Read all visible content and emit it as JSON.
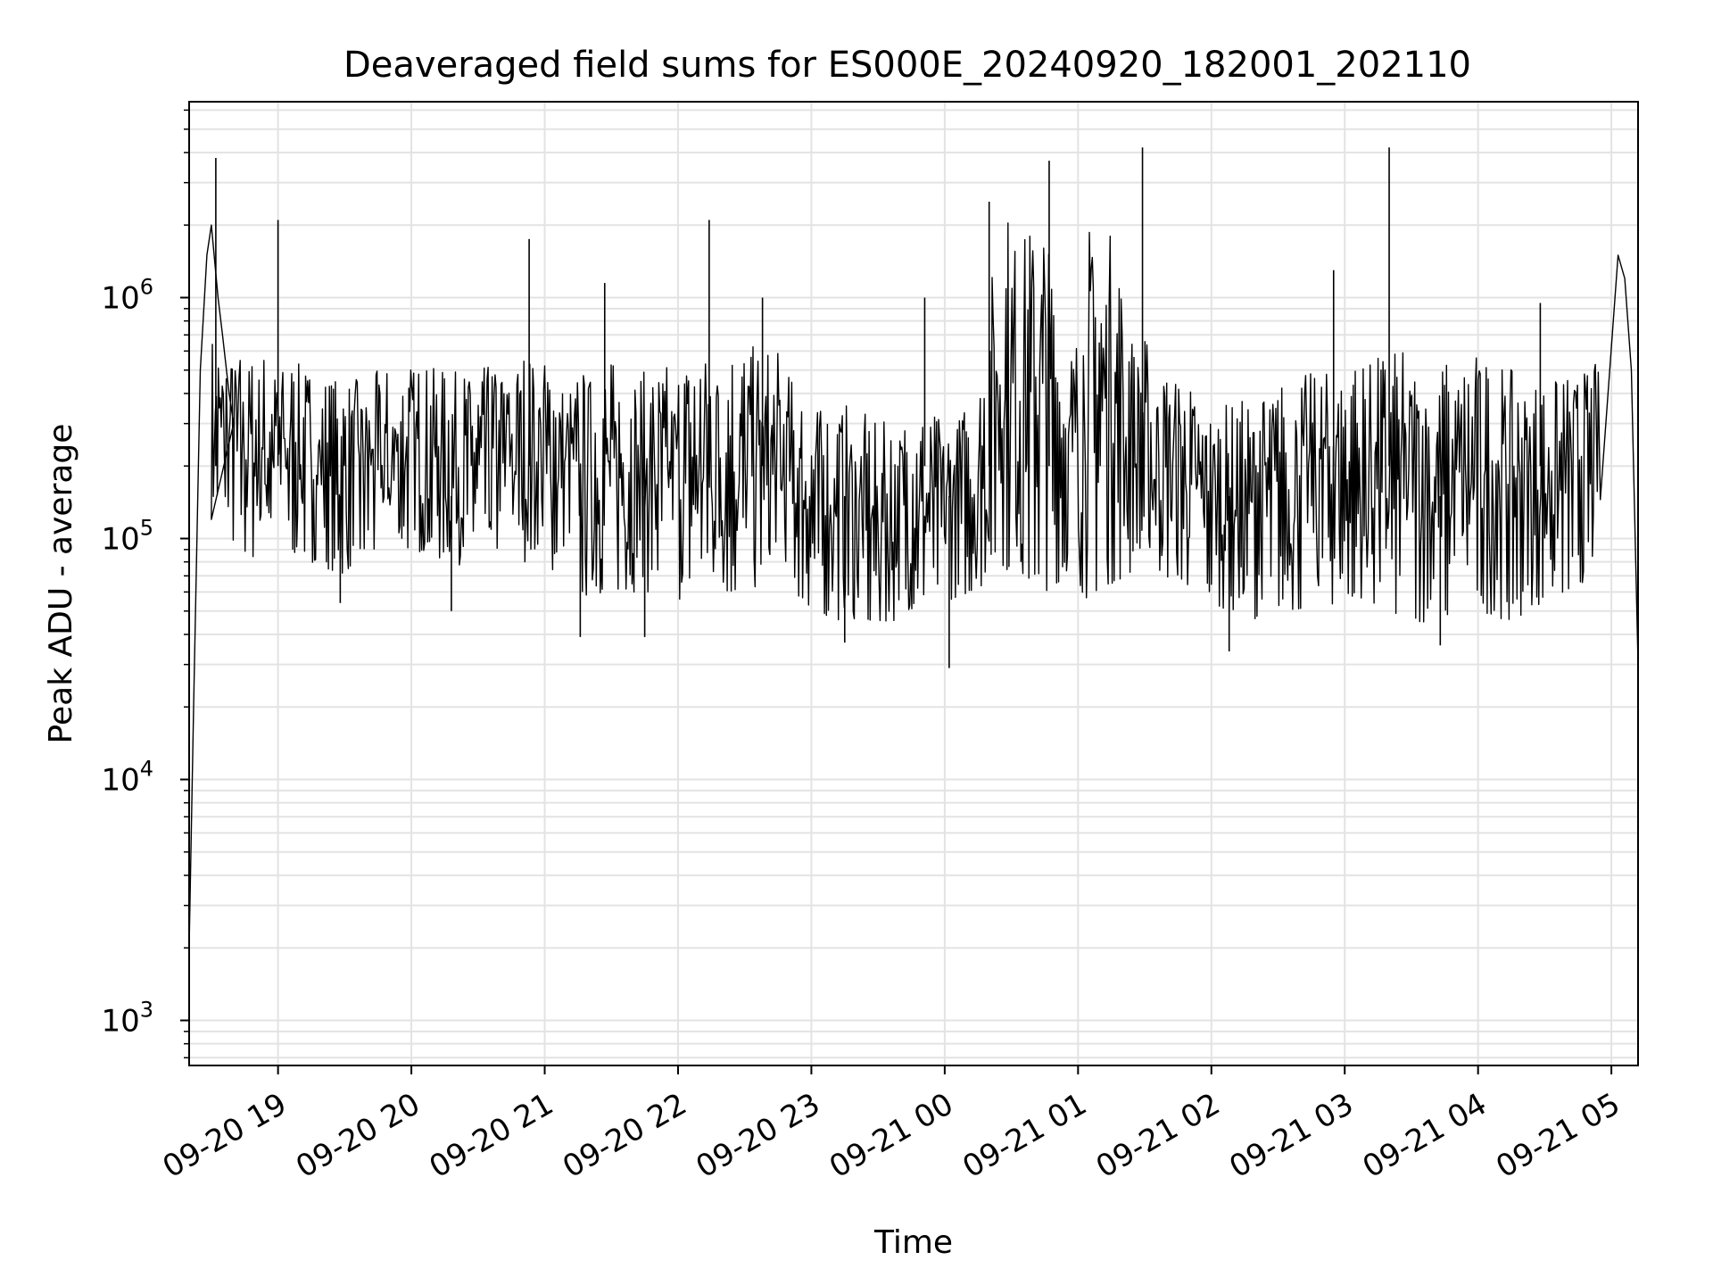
{
  "chart_data": {
    "type": "line",
    "title": "Deaveraged field sums for ES000E_20240920_182001_202110",
    "xlabel": "Time",
    "ylabel": "Peak ADU - average",
    "yscale": "log",
    "ylim": [
      650,
      6500000
    ],
    "xlim": [
      "2024-09-20T18:20:00",
      "2024-09-21T05:12:00"
    ],
    "grid": true,
    "x_ticks": [
      {
        "t": "2024-09-20T19:00:00",
        "label": "09-20 19"
      },
      {
        "t": "2024-09-20T20:00:00",
        "label": "09-20 20"
      },
      {
        "t": "2024-09-20T21:00:00",
        "label": "09-20 21"
      },
      {
        "t": "2024-09-20T22:00:00",
        "label": "09-20 22"
      },
      {
        "t": "2024-09-20T23:00:00",
        "label": "09-20 23"
      },
      {
        "t": "2024-09-21T00:00:00",
        "label": "09-21 00"
      },
      {
        "t": "2024-09-21T01:00:00",
        "label": "09-21 01"
      },
      {
        "t": "2024-09-21T02:00:00",
        "label": "09-21 02"
      },
      {
        "t": "2024-09-21T03:00:00",
        "label": "09-21 03"
      },
      {
        "t": "2024-09-21T04:00:00",
        "label": "09-21 04"
      },
      {
        "t": "2024-09-21T05:00:00",
        "label": "09-21 05"
      }
    ],
    "y_ticks": [
      {
        "v": 1000,
        "base": "10",
        "exp": "3"
      },
      {
        "v": 10000,
        "base": "10",
        "exp": "4"
      },
      {
        "v": 100000,
        "base": "10",
        "exp": "5"
      },
      {
        "v": 1000000,
        "base": "10",
        "exp": "6"
      }
    ],
    "series": [
      {
        "color": "#000000",
        "x": [
          "2024-09-20T18:20:00",
          "2024-09-20T18:22:00",
          "2024-09-20T18:25:00",
          "2024-09-20T18:28:00",
          "2024-09-20T18:30:00",
          "2024-09-20T18:33:00",
          "2024-09-20T18:35:00",
          "2024-09-20T18:38:00",
          "2024-09-20T18:40:00",
          "2024-09-20T18:45:00",
          "2024-09-20T18:50:00",
          "2024-09-20T18:55:00",
          "2024-09-20T19:00:00",
          "2024-09-20T19:15:00",
          "2024-09-20T19:30:00",
          "2024-09-20T19:45:00",
          "2024-09-20T20:00:00",
          "2024-09-20T20:15:00",
          "2024-09-20T20:30:00",
          "2024-09-20T20:45:00",
          "2024-09-20T21:00:00",
          "2024-09-20T21:15:00",
          "2024-09-20T21:30:00",
          "2024-09-20T21:45:00",
          "2024-09-20T22:00:00",
          "2024-09-20T22:15:00",
          "2024-09-20T22:30:00",
          "2024-09-20T22:45:00",
          "2024-09-20T23:00:00",
          "2024-09-20T23:15:00",
          "2024-09-20T23:30:00",
          "2024-09-20T23:45:00",
          "2024-09-21T00:00:00",
          "2024-09-21T00:15:00",
          "2024-09-21T00:30:00",
          "2024-09-21T00:45:00",
          "2024-09-21T01:00:00",
          "2024-09-21T01:15:00",
          "2024-09-21T01:30:00",
          "2024-09-21T01:45:00",
          "2024-09-21T02:00:00",
          "2024-09-21T02:15:00",
          "2024-09-21T02:30:00",
          "2024-09-21T02:45:00",
          "2024-09-21T03:00:00",
          "2024-09-21T03:15:00",
          "2024-09-21T03:30:00",
          "2024-09-21T03:45:00",
          "2024-09-21T04:00:00",
          "2024-09-21T04:15:00",
          "2024-09-21T04:30:00",
          "2024-09-21T04:45:00",
          "2024-09-21T05:00:00",
          "2024-09-21T05:03:00",
          "2024-09-21T05:06:00",
          "2024-09-21T05:09:00",
          "2024-09-21T05:12:00"
        ],
        "values": [
          2000,
          20000,
          500000,
          1500000,
          2000000,
          1000000,
          700000,
          400000,
          300000,
          250000,
          200000,
          220000,
          250000,
          200000,
          180000,
          200000,
          200000,
          190000,
          180000,
          220000,
          250000,
          200000,
          180000,
          220000,
          230000,
          300000,
          250000,
          200000,
          130000,
          120000,
          110000,
          120000,
          130000,
          150000,
          1000000,
          300000,
          600000,
          200000,
          400000,
          200000,
          150000,
          130000,
          150000,
          170000,
          180000,
          200000,
          210000,
          190000,
          200000,
          170000,
          160000,
          170000,
          180000,
          1500000,
          1200000,
          500000,
          30000
        ]
      }
    ],
    "envelope": {
      "x": [
        "2024-09-20T18:30:00",
        "2024-09-20T18:45:00",
        "2024-09-20T19:00:00",
        "2024-09-20T19:15:00",
        "2024-09-20T19:30:00",
        "2024-09-20T19:45:00",
        "2024-09-20T20:00:00",
        "2024-09-20T20:15:00",
        "2024-09-20T20:30:00",
        "2024-09-20T20:45:00",
        "2024-09-20T21:00:00",
        "2024-09-20T21:15:00",
        "2024-09-20T21:30:00",
        "2024-09-20T21:45:00",
        "2024-09-20T22:00:00",
        "2024-09-20T22:15:00",
        "2024-09-20T22:30:00",
        "2024-09-20T22:45:00",
        "2024-09-20T23:00:00",
        "2024-09-20T23:15:00",
        "2024-09-20T23:30:00",
        "2024-09-20T23:45:00",
        "2024-09-21T00:00:00",
        "2024-09-21T00:15:00",
        "2024-09-21T00:25:00",
        "2024-09-21T00:35:00",
        "2024-09-21T00:45:00",
        "2024-09-21T00:55:00",
        "2024-09-21T01:05:00",
        "2024-09-21T01:15:00",
        "2024-09-21T01:25:00",
        "2024-09-21T01:35:00",
        "2024-09-21T01:45:00",
        "2024-09-21T02:00:00",
        "2024-09-21T02:15:00",
        "2024-09-21T02:30:00",
        "2024-09-21T02:45:00",
        "2024-09-21T03:00:00",
        "2024-09-21T03:15:00",
        "2024-09-21T03:30:00",
        "2024-09-21T03:45:00",
        "2024-09-21T04:00:00",
        "2024-09-21T04:15:00",
        "2024-09-21T04:30:00",
        "2024-09-21T04:45:00",
        "2024-09-21T04:55:00"
      ],
      "hi": [
        700000,
        600000,
        600000,
        500000,
        450000,
        500000,
        550000,
        500000,
        500000,
        600000,
        600000,
        500000,
        550000,
        500000,
        550000,
        700000,
        650000,
        600000,
        350000,
        380000,
        300000,
        350000,
        320000,
        400000,
        2500000,
        2000000,
        2500000,
        500000,
        2000000,
        2000000,
        800000,
        600000,
        500000,
        350000,
        380000,
        450000,
        500000,
        550000,
        600000,
        600000,
        550000,
        600000,
        500000,
        450000,
        500000,
        550000
      ],
      "lo": [
        120000,
        80000,
        90000,
        80000,
        70000,
        80000,
        90000,
        80000,
        75000,
        80000,
        80000,
        55000,
        60000,
        60000,
        55000,
        60000,
        55000,
        70000,
        50000,
        45000,
        40000,
        50000,
        55000,
        60000,
        80000,
        60000,
        60000,
        70000,
        55000,
        65000,
        70000,
        70000,
        65000,
        55000,
        45000,
        50000,
        50000,
        55000,
        50000,
        45000,
        45000,
        50000,
        45000,
        55000,
        60000,
        80000
      ]
    },
    "spikes": [
      {
        "t": "2024-09-20T18:32:00",
        "v": 3800000
      },
      {
        "t": "2024-09-20T19:00:00",
        "v": 2100000
      },
      {
        "t": "2024-09-20T20:53:00",
        "v": 1750000
      },
      {
        "t": "2024-09-20T22:14:00",
        "v": 2100000
      },
      {
        "t": "2024-09-20T22:38:00",
        "v": 1000000
      },
      {
        "t": "2024-09-21T00:20:00",
        "v": 2500000
      },
      {
        "t": "2024-09-21T00:47:00",
        "v": 3700000
      },
      {
        "t": "2024-09-21T01:29:00",
        "v": 4200000
      },
      {
        "t": "2024-09-21T03:20:00",
        "v": 4200000
      },
      {
        "t": "2024-09-21T02:55:00",
        "v": 1300000
      },
      {
        "t": "2024-09-20T21:27:00",
        "v": 1150000
      },
      {
        "t": "2024-09-20T23:51:00",
        "v": 1000000
      },
      {
        "t": "2024-09-21T04:28:00",
        "v": 950000
      },
      {
        "t": "2024-09-21T00:02:00",
        "v": 29000
      },
      {
        "t": "2024-09-20T21:16:00",
        "v": 39000
      },
      {
        "t": "2024-09-20T21:45:00",
        "v": 39000
      },
      {
        "t": "2024-09-20T23:15:00",
        "v": 37000
      },
      {
        "t": "2024-09-21T02:08:00",
        "v": 34000
      },
      {
        "t": "2024-09-21T03:43:00",
        "v": 36000
      },
      {
        "t": "2024-09-20T19:28:00",
        "v": 54000
      },
      {
        "t": "2024-09-20T20:18:00",
        "v": 50000
      }
    ]
  }
}
